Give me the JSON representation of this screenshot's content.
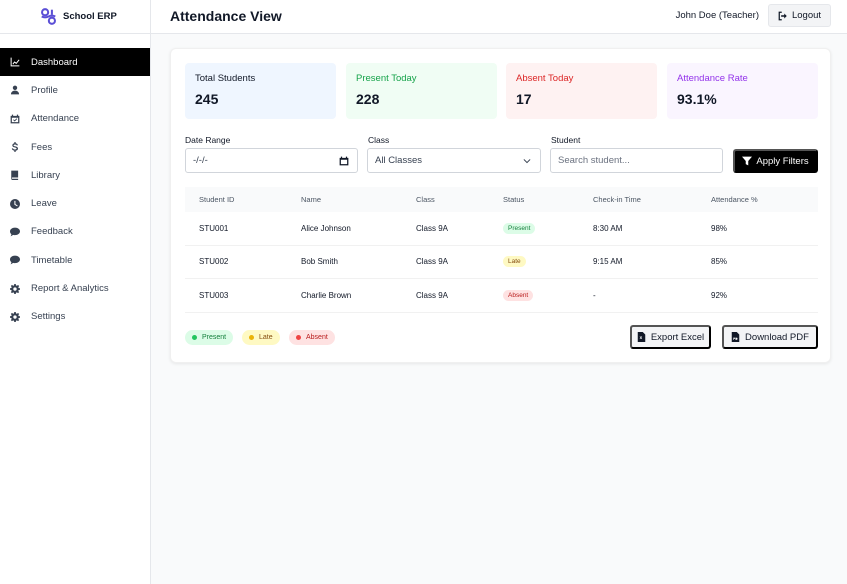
{
  "brand": {
    "name": "School ERP",
    "logo_color": "#5b4fd6"
  },
  "sidebar": {
    "items": [
      {
        "label": "Dashboard",
        "icon": "chart-line-icon",
        "active": true
      },
      {
        "label": "Profile",
        "icon": "user-icon"
      },
      {
        "label": "Attendance",
        "icon": "calendar-check-icon"
      },
      {
        "label": "Fees",
        "icon": "dollar-icon"
      },
      {
        "label": "Library",
        "icon": "book-icon"
      },
      {
        "label": "Leave",
        "icon": "clock-icon"
      },
      {
        "label": "Feedback",
        "icon": "comment-icon"
      },
      {
        "label": "Timetable",
        "icon": "comment-icon"
      },
      {
        "label": "Report & Analytics",
        "icon": "gear-icon"
      },
      {
        "label": "Settings",
        "icon": "gear-icon"
      }
    ]
  },
  "header": {
    "title": "Attendance View",
    "user": "John Doe (Teacher)",
    "logout_label": "Logout"
  },
  "stats": [
    {
      "label": "Total Students",
      "value": "245",
      "color": "#111827"
    },
    {
      "label": "Present Today",
      "value": "228",
      "color": "#16a34a"
    },
    {
      "label": "Absent Today",
      "value": "17",
      "color": "#dc2626"
    },
    {
      "label": "Attendance Rate",
      "value": "93.1%",
      "color": "#9333ea"
    }
  ],
  "filters": {
    "date_label": "Date Range",
    "date_value": "-/-/-",
    "class_label": "Class",
    "class_value": "All Classes",
    "student_label": "Student",
    "student_placeholder": "Search student...",
    "apply_label": "Apply Filters"
  },
  "table": {
    "headers": [
      "Student ID",
      "Name",
      "Class",
      "Status",
      "Check-in Time",
      "Attendance %"
    ],
    "rows": [
      {
        "id": "STU001",
        "name": "Alice Johnson",
        "class": "Class 9A",
        "status": "Present",
        "checkin": "8:30 AM",
        "pct": "98%"
      },
      {
        "id": "STU002",
        "name": "Bob Smith",
        "class": "Class 9A",
        "status": "Late",
        "checkin": "9:15 AM",
        "pct": "85%"
      },
      {
        "id": "STU003",
        "name": "Charlie Brown",
        "class": "Class 9A",
        "status": "Absent",
        "checkin": "-",
        "pct": "92%"
      }
    ]
  },
  "legend": {
    "present": "Present",
    "late": "Late",
    "absent": "Absent"
  },
  "actions": {
    "export_label": "Export Excel",
    "pdf_label": "Download PDF"
  }
}
